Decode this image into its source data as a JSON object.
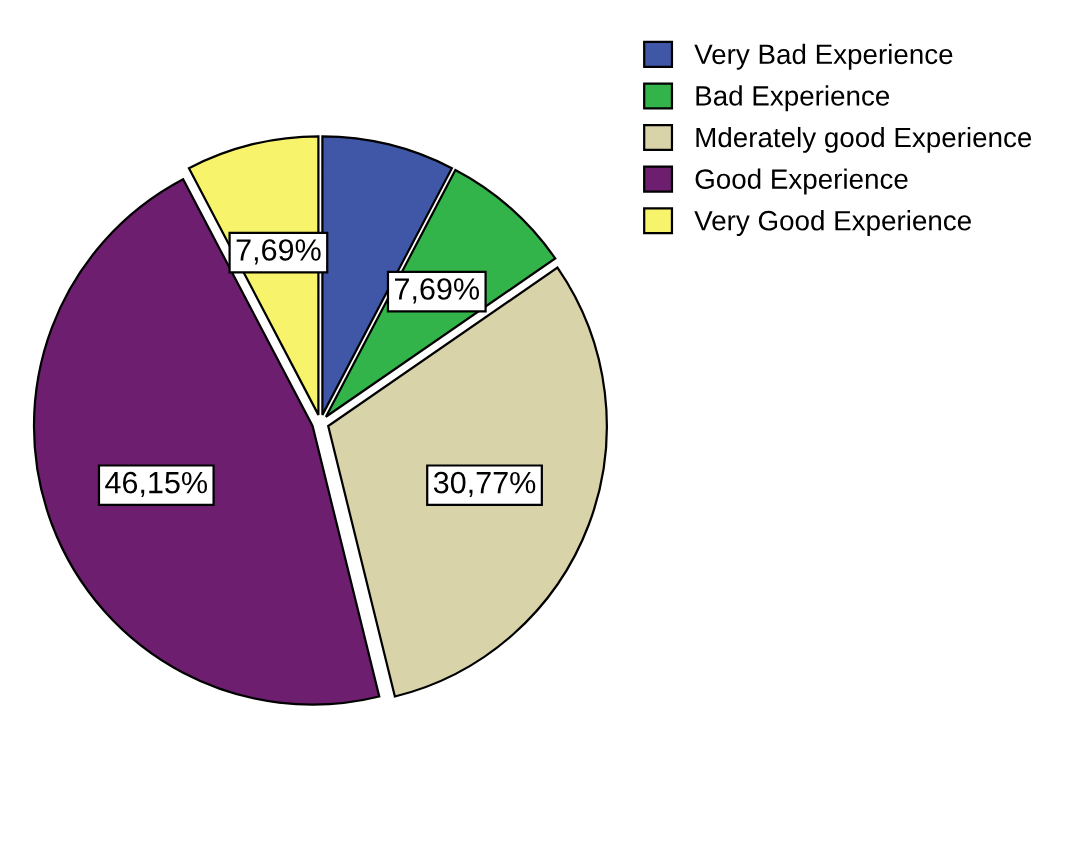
{
  "chart_data": {
    "type": "pie",
    "categories": [
      "Very Bad Experience",
      "Bad Experience",
      "Mderately good Experience",
      "Good Experience",
      "Very Good Experience"
    ],
    "values": [
      7.69,
      7.69,
      30.77,
      46.15,
      7.69
    ],
    "colors": [
      "#3f57a6",
      "#33b44a",
      "#d8d3a8",
      "#6d1e6e",
      "#f7f36b"
    ],
    "value_labels": [
      null,
      "7,69%",
      "30,77%",
      "46,15%",
      "7,69%"
    ],
    "legend": "top right"
  }
}
